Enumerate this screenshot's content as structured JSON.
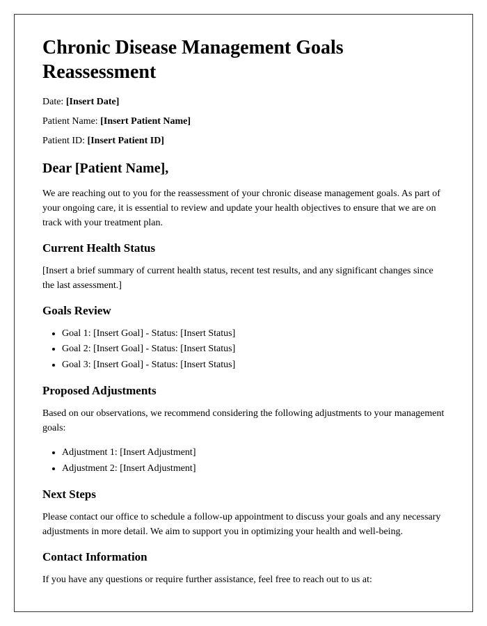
{
  "title": "Chronic Disease Management Goals Reassessment",
  "meta": {
    "date_label": "Date: ",
    "date_value": "[Insert Date]",
    "patient_name_label": "Patient Name: ",
    "patient_name_value": "[Insert Patient Name]",
    "patient_id_label": "Patient ID: ",
    "patient_id_value": "[Insert Patient ID]"
  },
  "greeting": "Dear [Patient Name],",
  "intro": "We are reaching out to you for the reassessment of your chronic disease management goals. As part of your ongoing care, it is essential to review and update your health objectives to ensure that we are on track with your treatment plan.",
  "sections": {
    "current_health": {
      "heading": "Current Health Status",
      "text": "[Insert a brief summary of current health status, recent test results, and any significant changes since the last assessment.]"
    },
    "goals_review": {
      "heading": "Goals Review",
      "items": [
        "Goal 1: [Insert Goal] - Status: [Insert Status]",
        "Goal 2: [Insert Goal] - Status: [Insert Status]",
        "Goal 3: [Insert Goal] - Status: [Insert Status]"
      ]
    },
    "proposed_adjustments": {
      "heading": "Proposed Adjustments",
      "text": "Based on our observations, we recommend considering the following adjustments to your management goals:",
      "items": [
        "Adjustment 1: [Insert Adjustment]",
        "Adjustment 2: [Insert Adjustment]"
      ]
    },
    "next_steps": {
      "heading": "Next Steps",
      "text": "Please contact our office to schedule a follow-up appointment to discuss your goals and any necessary adjustments in more detail. We aim to support you in optimizing your health and well-being."
    },
    "contact": {
      "heading": "Contact Information",
      "text": "If you have any questions or require further assistance, feel free to reach out to us at:"
    }
  }
}
